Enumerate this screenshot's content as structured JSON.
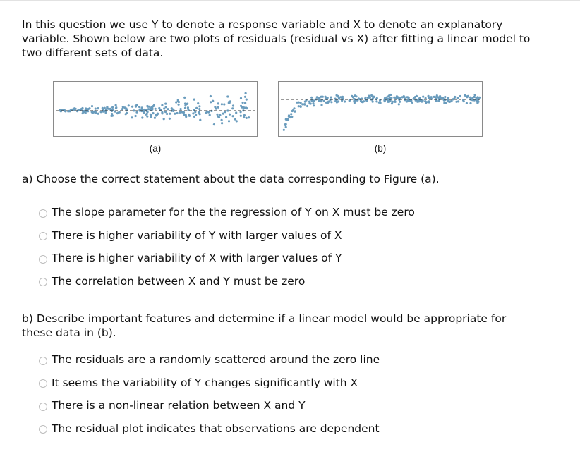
{
  "intro": "In this question we use Y to denote a response variable and X to denote an explanatory variable. Shown below are two plots of residuals (residual vs X) after fitting a linear model to two different sets of data.",
  "figures": [
    {
      "caption": "(a)",
      "pattern": "fan-shaped (spread increases with X)"
    },
    {
      "caption": "(b)",
      "pattern": "curved then flat"
    }
  ],
  "colors": {
    "points": "#6a9cbd",
    "frame": "#8a8a8a",
    "zero_line": "#333333",
    "radio_border": "#bdbdbd"
  },
  "part_a": {
    "question": "a) Choose the correct statement about the data corresponding to Figure (a).",
    "options": [
      "The slope parameter for the the regression of Y on X must be zero",
      "There is higher variability of Y with larger values of X",
      "There is higher variability of X with larger values of Y",
      "The correlation between X and Y must be zero"
    ]
  },
  "part_b": {
    "question": "b) Describe important features and determine if a linear model would be appropriate for these data in (b).",
    "options": [
      "The residuals are a randomly scattered around the zero line",
      "It seems the variability of Y changes significantly with X",
      "There is a non-linear relation between X and Y",
      "The residual plot indicates that observations are dependent"
    ]
  }
}
